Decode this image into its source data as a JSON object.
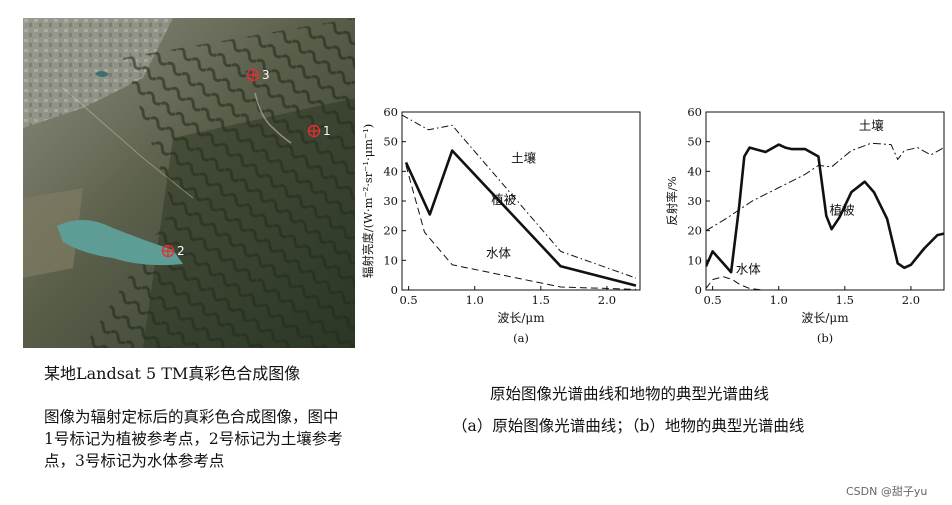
{
  "image_caption": "某地Landsat 5 TM真彩色合成图像",
  "image_description": "图像为辐射定标后的真彩色合成图像，图中1号标记为植被参考点，2号标记为土壤参考点，3号标记为水体参考点",
  "markers": [
    "1",
    "2",
    "3"
  ],
  "figure_title": "原始图像光谱曲线和地物的典型光谱曲线",
  "figure_subtitle": "（a）原始图像光谱曲线；（b）地物的典型光谱曲线",
  "watermark": "CSDN @甜子yu",
  "chart_data": [
    {
      "type": "line",
      "panel_label": "(a)",
      "xlabel": "波长/μm",
      "ylabel": "辐射亮度/(W·m⁻²·sr⁻¹·μm⁻¹)",
      "xlim": [
        0.45,
        2.25
      ],
      "ylim": [
        0,
        60
      ],
      "xticks": [
        "0.5",
        "1.0",
        "1.5",
        "2.0"
      ],
      "yticks": [
        "0",
        "10",
        "20",
        "30",
        "40",
        "50",
        "60"
      ],
      "series": [
        {
          "name": "土壤",
          "style": "dash-dot",
          "x": [
            0.45,
            0.65,
            0.83,
            1.65,
            2.22
          ],
          "y": [
            59,
            54,
            55.5,
            13,
            4
          ]
        },
        {
          "name": "植被",
          "style": "thick",
          "x": [
            0.48,
            0.66,
            0.83,
            1.65,
            2.22
          ],
          "y": [
            43,
            25.5,
            47,
            8,
            1.5
          ]
        },
        {
          "name": "水体",
          "style": "dash",
          "x": [
            0.48,
            0.62,
            0.83,
            1.65,
            2.22
          ],
          "y": [
            42,
            19.5,
            8.5,
            1,
            0.2
          ]
        }
      ]
    },
    {
      "type": "line",
      "panel_label": "(b)",
      "xlabel": "波长/μm",
      "ylabel": "反射率/%",
      "xlim": [
        0.45,
        2.25
      ],
      "ylim": [
        0,
        60
      ],
      "xticks": [
        "0.5",
        "1.0",
        "1.5",
        "2.0"
      ],
      "yticks": [
        "0",
        "10",
        "20",
        "30",
        "40",
        "50",
        "60"
      ],
      "series": [
        {
          "name": "土壤",
          "style": "dash-dash",
          "x": [
            0.45,
            0.6,
            0.8,
            1.0,
            1.2,
            1.3,
            1.4,
            1.55,
            1.7,
            1.85,
            1.9,
            1.95,
            2.05,
            2.15,
            2.25
          ],
          "y": [
            20,
            24,
            30,
            34.5,
            39,
            42,
            41.5,
            47,
            49.5,
            49,
            44,
            47,
            48,
            45.5,
            48
          ]
        },
        {
          "name": "植被",
          "style": "thick",
          "x": [
            0.45,
            0.5,
            0.58,
            0.64,
            0.7,
            0.74,
            0.78,
            0.9,
            1.0,
            1.05,
            1.1,
            1.2,
            1.3,
            1.36,
            1.4,
            1.46,
            1.55,
            1.65,
            1.72,
            1.82,
            1.9,
            1.95,
            2.0,
            2.1,
            2.2,
            2.25
          ],
          "y": [
            8,
            13,
            9,
            6,
            28,
            45,
            48,
            46.5,
            49,
            48,
            47.5,
            47.5,
            45,
            25,
            20.5,
            24.5,
            33,
            36.5,
            33,
            24,
            9,
            7.5,
            8.5,
            14,
            18.5,
            19
          ]
        },
        {
          "name": "水体",
          "style": "dash",
          "x": [
            0.45,
            0.5,
            0.58,
            0.65,
            0.7,
            0.78,
            0.88
          ],
          "y": [
            0.5,
            3.5,
            4.5,
            3.5,
            2,
            0.5,
            0
          ]
        }
      ]
    }
  ]
}
